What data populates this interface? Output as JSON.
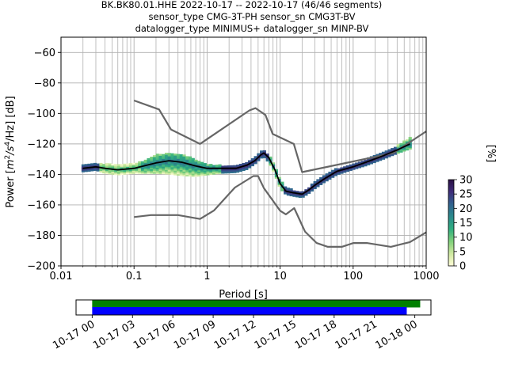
{
  "title": {
    "line1": "BK.BK80.01.HHE   2022-10-17 -- 2022-10-17  (46/46 segments)",
    "line2": "sensor_type CMG-3T-PH sensor_sn CMG3T-BV",
    "line3": "datalogger_type MINIMUS+ datalogger_sn MINP-BV"
  },
  "chart_data": [
    {
      "type": "heatmap",
      "xlabel": "Period [s]",
      "xscale": "log",
      "xlim": [
        0.01,
        1000
      ],
      "xticks": [
        0.01,
        0.1,
        1,
        10,
        100,
        1000
      ],
      "xtick_labels": [
        "0.01",
        "0.1",
        "1",
        "10",
        "100",
        "1000"
      ],
      "ylabel_prefix": "Power [",
      "ylabel_unit_m": "m",
      "ylabel_exp2": "2",
      "ylabel_slash_s": "/s",
      "ylabel_exp4": "4",
      "ylabel_suffix": "/Hz] [dB]",
      "ylim": [
        -200,
        -50
      ],
      "yticks": [
        -200,
        -180,
        -160,
        -140,
        -120,
        -100,
        -80,
        -60
      ],
      "ytick_labels": [
        "−200",
        "−180",
        "−160",
        "−140",
        "−120",
        "−100",
        "−80",
        "−60"
      ],
      "grid": true,
      "colorbar": {
        "label": "[%]",
        "min": 0,
        "max": 30,
        "ticks": [
          0,
          5,
          10,
          15,
          20,
          25,
          30
        ],
        "tick_labels": [
          "0",
          "5",
          "10",
          "15",
          "20",
          "25",
          "30"
        ],
        "colors": [
          "#fffdd8",
          "#cfe8a0",
          "#7fd07a",
          "#2fae80",
          "#2b8a8c",
          "#31628e",
          "#3e2d7a",
          "#2a0f44"
        ]
      },
      "noise_model_high": {
        "x": [
          0.1,
          0.22,
          0.32,
          0.8,
          3.8,
          4.6,
          6.3,
          7.9,
          15.4,
          20,
          354.8,
          10000
        ],
        "y": [
          -91.5,
          -97.4,
          -110.5,
          -120,
          -98,
          -96.5,
          -101,
          -113.5,
          -120,
          -138.5,
          -126,
          -80.1
        ]
      },
      "noise_model_low": {
        "x": [
          0.1,
          0.17,
          0.4,
          0.8,
          1.24,
          2.4,
          4.3,
          5,
          6,
          10,
          12,
          15.6,
          21.9,
          31.6,
          45,
          70,
          101,
          154,
          328,
          600,
          1000
        ],
        "y": [
          -168,
          -166.7,
          -166.7,
          -169.2,
          -163.7,
          -148.6,
          -141.1,
          -141.1,
          -149,
          -163.8,
          -166.2,
          -162.1,
          -177.5,
          -185,
          -187.5,
          -187.5,
          -185,
          -185,
          -187.5,
          -184.4,
          -178
        ]
      },
      "median": {
        "x": [
          0.02,
          0.025,
          0.03,
          0.04,
          0.06,
          0.1,
          0.15,
          0.2,
          0.3,
          0.45,
          0.7,
          1,
          1.5,
          2.5,
          3.5,
          4.5,
          5.5,
          6,
          7,
          8.5,
          10,
          12,
          15,
          20,
          25,
          30,
          40,
          60,
          100,
          150,
          250,
          400,
          600
        ],
        "y": [
          -136,
          -135.5,
          -135,
          -136,
          -137,
          -136,
          -134,
          -132.5,
          -131,
          -132,
          -134.5,
          -136,
          -136,
          -136,
          -134,
          -131,
          -127,
          -126,
          -129,
          -137,
          -146,
          -151,
          -152,
          -153,
          -150,
          -147,
          -143,
          -138,
          -135,
          -132,
          -128,
          -124,
          -120
        ]
      },
      "pdf_band": {
        "x": [
          0.02,
          0.025,
          0.03,
          0.04,
          0.06,
          0.1,
          0.15,
          0.2,
          0.3,
          0.45,
          0.7,
          1,
          1.5,
          2.5,
          3.5,
          4.5,
          5.5,
          6,
          7,
          8.5,
          10,
          12,
          15,
          20,
          25,
          30,
          40,
          60,
          100,
          150,
          250,
          400,
          600
        ],
        "y_low": [
          -138,
          -137.5,
          -137,
          -139,
          -140,
          -139,
          -139,
          -139,
          -139.5,
          -140.5,
          -141,
          -140,
          -139,
          -138.5,
          -136.5,
          -133,
          -129,
          -128.5,
          -132,
          -140,
          -149,
          -153,
          -154,
          -155,
          -152,
          -149,
          -145,
          -140,
          -136.5,
          -134,
          -130,
          -126,
          -123
        ],
        "y_high": [
          -134,
          -133.5,
          -133,
          -133,
          -134,
          -133,
          -130,
          -127,
          -126,
          -127,
          -130,
          -133,
          -134,
          -134,
          -132,
          -129,
          -125,
          -124,
          -127,
          -135,
          -143,
          -149,
          -150,
          -151.5,
          -148,
          -145,
          -141,
          -136,
          -133,
          -130,
          -126,
          -121,
          -116
        ]
      }
    },
    {
      "type": "timeline",
      "tick_labels": [
        "10-17 00",
        "10-17 03",
        "10-17 06",
        "10-17 09",
        "10-17 12",
        "10-17 15",
        "10-17 18",
        "10-17 21",
        "10-18 00"
      ],
      "tick_hours": [
        0,
        3,
        6,
        9,
        12,
        15,
        18,
        21,
        24
      ],
      "xlim_hours": [
        -1.2,
        25.2
      ],
      "coverage_green": [
        0,
        24.4
      ],
      "coverage_blue": [
        0,
        23.4
      ],
      "green_color": "#008000",
      "blue_color": "#0000ff"
    }
  ]
}
